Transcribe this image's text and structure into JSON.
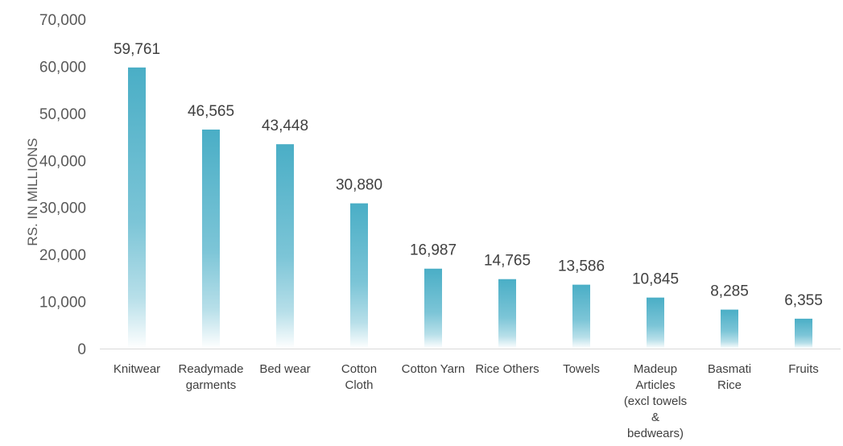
{
  "chart_data": {
    "type": "bar",
    "title": "",
    "xlabel": "",
    "ylabel": "RS. IN MILLIONS",
    "ylim": [
      0,
      70000
    ],
    "yticks": [
      0,
      10000,
      20000,
      30000,
      40000,
      50000,
      60000,
      70000
    ],
    "ytick_labels": [
      "0",
      "10,000",
      "20,000",
      "30,000",
      "40,000",
      "50,000",
      "60,000",
      "70,000"
    ],
    "grid": false,
    "legend": "none",
    "bar_color": "#4aaec6",
    "categories": [
      "Knitwear",
      "Readymade garments",
      "Bed wear",
      "Cotton Cloth",
      "Cotton Yarn",
      "Rice Others",
      "Towels",
      "Madeup Articles (excl towels & bedwears)",
      "Basmati Rice",
      "Fruits"
    ],
    "category_lines": [
      [
        "Knitwear"
      ],
      [
        "Readymade",
        "garments"
      ],
      [
        "Bed wear"
      ],
      [
        "Cotton",
        "Cloth"
      ],
      [
        "Cotton Yarn"
      ],
      [
        "Rice Others"
      ],
      [
        "Towels"
      ],
      [
        "Madeup",
        "Articles",
        "(excl towels",
        "&",
        "bedwears)"
      ],
      [
        "Basmati",
        "Rice"
      ],
      [
        "Fruits"
      ]
    ],
    "values": [
      59761,
      46565,
      43448,
      30880,
      16987,
      14765,
      13586,
      10845,
      8285,
      6355
    ],
    "data_labels": [
      "59,761",
      "46,565",
      "43,448",
      "30,880",
      "16,987",
      "14,765",
      "13,586",
      "10,845",
      "8,285",
      "6,355"
    ]
  }
}
